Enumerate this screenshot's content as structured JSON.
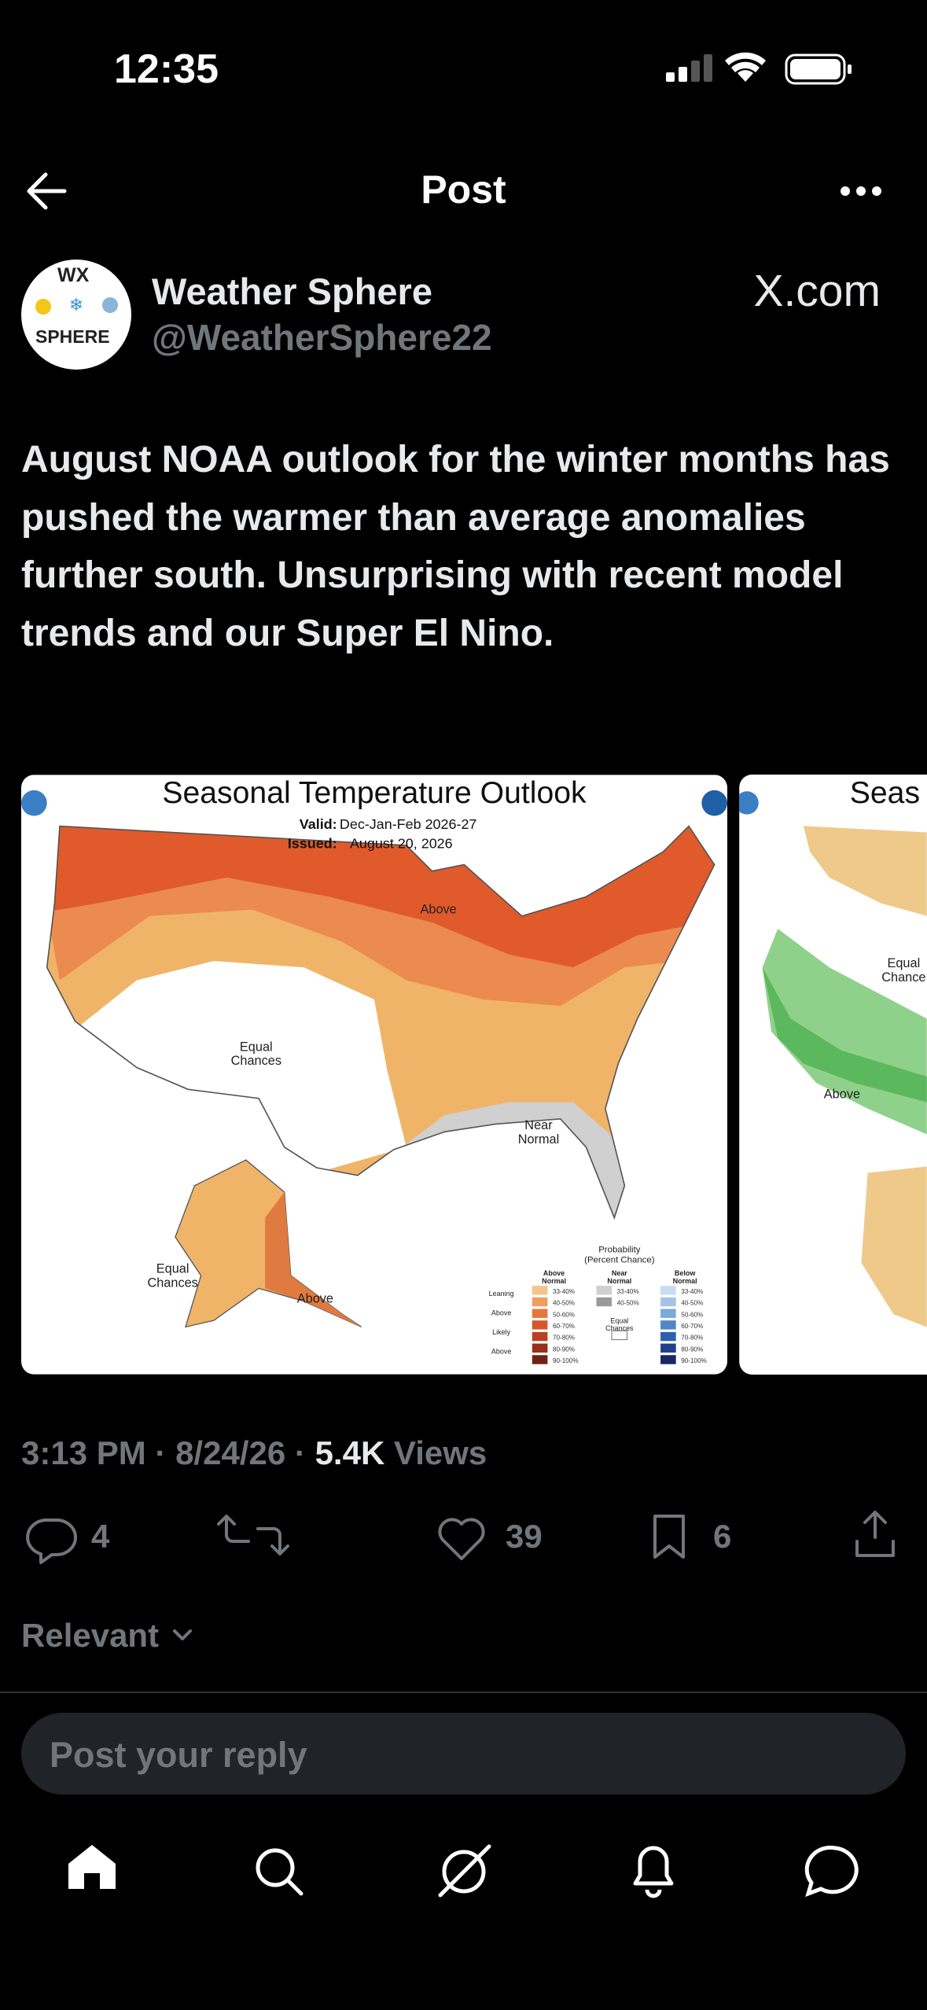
{
  "status_bar": {
    "time": "12:35"
  },
  "header": {
    "title": "Post"
  },
  "post": {
    "author": {
      "name": "Weather Sphere",
      "handle": "@WeatherSphere22",
      "avatar_text": [
        "WX",
        "SPHERE"
      ]
    },
    "watermark": "X.com",
    "text": "August NOAA outlook for the winter months has pushed the warmer than average anomalies further south. Unsurprising with recent model trends and our Super El Nino.",
    "images": [
      {
        "title": "Seasonal Temperature Outlook",
        "valid_label": "Valid:",
        "valid": "Dec-Jan-Feb 2026-27",
        "issued_label": "Issued:",
        "issued": "August 20, 2026",
        "labels": [
          {
            "lines": [
              "Above"
            ]
          },
          {
            "lines": [
              "Equal",
              "Chances"
            ]
          },
          {
            "lines": [
              "Near",
              "Normal"
            ]
          },
          {
            "lines": [
              "Equal",
              "Chances"
            ]
          },
          {
            "lines": [
              "Above"
            ]
          }
        ],
        "legend": {
          "title": [
            "Probability",
            "(Percent Chance)"
          ],
          "columns": [
            [
              "Above",
              "Normal"
            ],
            [
              "Near",
              "Normal"
            ],
            [
              "Below",
              "Normal"
            ]
          ],
          "rows": [
            "Leaning",
            "Above",
            "Likely",
            "Above"
          ],
          "equal": [
            "Equal",
            "Chances"
          ],
          "ranges": [
            "33-40%",
            "40-50%",
            "50-60%",
            "60-70%",
            "70-80%",
            "80-90%",
            "90-100%"
          ]
        }
      },
      {
        "title": "Seas",
        "labels": [
          {
            "lines": [
              "Equal",
              "Chance"
            ]
          },
          {
            "lines": [
              "Above"
            ]
          }
        ]
      }
    ],
    "meta": {
      "time": "3:13 PM",
      "separator": "·",
      "date": "8/24/26",
      "views_count": "5.4K",
      "views_label": "Views"
    },
    "stats": {
      "replies": 4,
      "likes": 39,
      "bookmarks": 6
    }
  },
  "replies": {
    "sort": "Relevant",
    "placeholder": "Post your reply"
  }
}
